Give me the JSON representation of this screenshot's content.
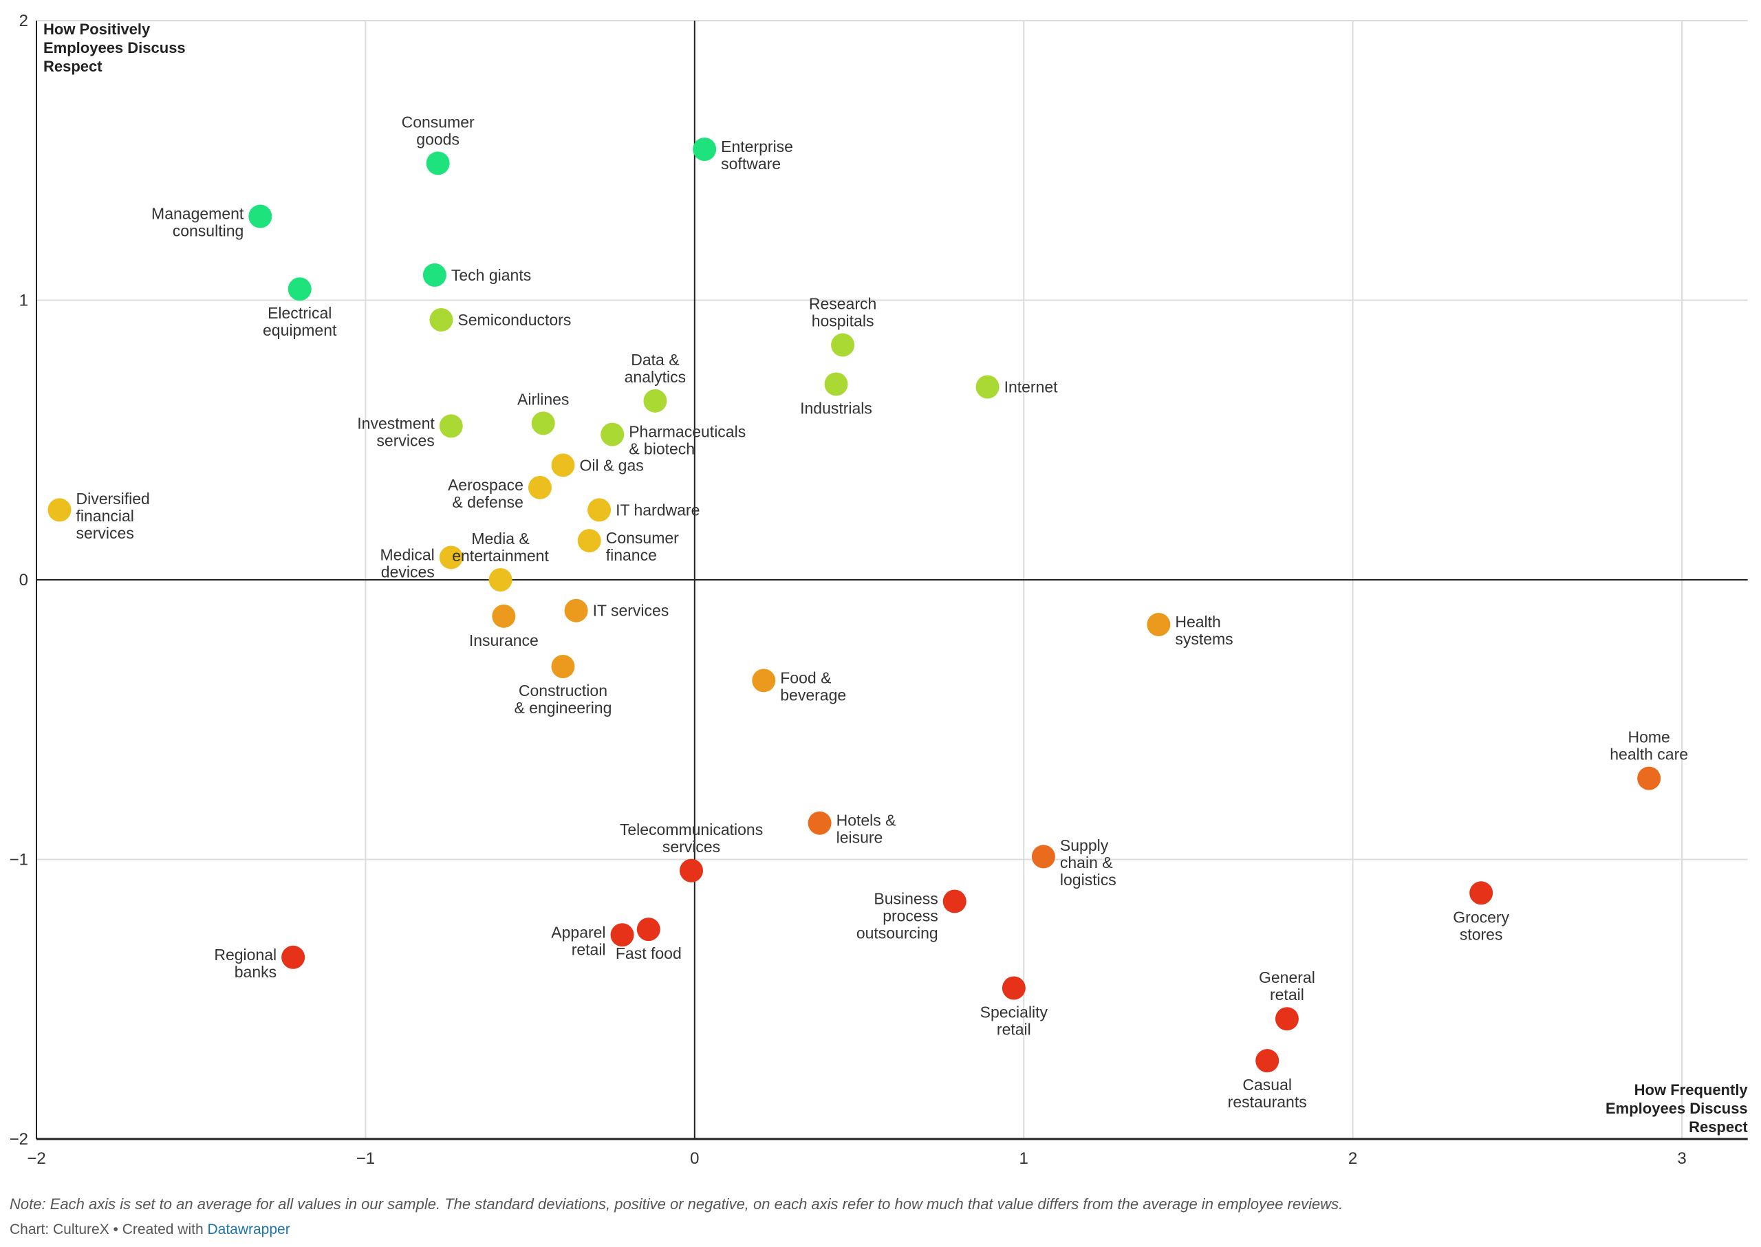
{
  "chart_data": {
    "type": "scatter",
    "title": "",
    "xlabel": "How Frequently Employees Discuss Respect",
    "ylabel": "How Positively Employees Discuss Respect",
    "xlabel_lines": [
      "How Frequently",
      "Employees Discuss",
      "Respect"
    ],
    "ylabel_lines": [
      "How Positively",
      "Employees Discuss",
      "Respect"
    ],
    "xlim": [
      -2,
      3.2
    ],
    "ylim": [
      -2,
      2
    ],
    "x_ticks": [
      -2,
      -1,
      0,
      1,
      2,
      3
    ],
    "y_ticks": [
      -2,
      -1,
      0,
      1,
      2
    ],
    "x_tick_labels": [
      "−2",
      "−1",
      "0",
      "1",
      "2",
      "3"
    ],
    "y_tick_labels": [
      "−2",
      "−1",
      "0",
      "1",
      "2"
    ],
    "grid": true,
    "zero_lines": true,
    "color_scale": {
      "green": "#1ee27c",
      "lime": "#a9d932",
      "yellow": "#ecbf1e",
      "orange": "#ec9a1e",
      "dark_orange": "#ea6a1e",
      "red": "#e53218"
    },
    "points": [
      {
        "name": "Consumer goods",
        "lines": [
          "Consumer",
          "goods"
        ],
        "x": -0.78,
        "y": 1.49,
        "color": "green",
        "label_pos": "top"
      },
      {
        "name": "Enterprise software",
        "lines": [
          "Enterprise",
          "software"
        ],
        "x": 0.03,
        "y": 1.54,
        "color": "green",
        "label_pos": "right"
      },
      {
        "name": "Management consulting",
        "lines": [
          "Management",
          "consulting"
        ],
        "x": -1.32,
        "y": 1.3,
        "color": "green",
        "label_pos": "left"
      },
      {
        "name": "Tech giants",
        "lines": [
          "Tech giants"
        ],
        "x": -0.79,
        "y": 1.09,
        "color": "green",
        "label_pos": "right"
      },
      {
        "name": "Electrical equipment",
        "lines": [
          "Electrical",
          "equipment"
        ],
        "x": -1.2,
        "y": 1.04,
        "color": "green",
        "label_pos": "bottom"
      },
      {
        "name": "Semiconductors",
        "lines": [
          "Semiconductors"
        ],
        "x": -0.77,
        "y": 0.93,
        "color": "lime",
        "label_pos": "right"
      },
      {
        "name": "Research hospitals",
        "lines": [
          "Research",
          "hospitals"
        ],
        "x": 0.45,
        "y": 0.84,
        "color": "lime",
        "label_pos": "top"
      },
      {
        "name": "Industrials",
        "lines": [
          "Industrials"
        ],
        "x": 0.43,
        "y": 0.7,
        "color": "lime",
        "label_pos": "bottom"
      },
      {
        "name": "Internet",
        "lines": [
          "Internet"
        ],
        "x": 0.89,
        "y": 0.69,
        "color": "lime",
        "label_pos": "right"
      },
      {
        "name": "Data & analytics",
        "lines": [
          "Data &",
          "analytics"
        ],
        "x": -0.12,
        "y": 0.64,
        "color": "lime",
        "label_pos": "top"
      },
      {
        "name": "Airlines",
        "lines": [
          "Airlines"
        ],
        "x": -0.46,
        "y": 0.56,
        "color": "lime",
        "label_pos": "top"
      },
      {
        "name": "Investment services",
        "lines": [
          "Investment",
          "services"
        ],
        "x": -0.74,
        "y": 0.55,
        "color": "lime",
        "label_pos": "left"
      },
      {
        "name": "Pharmaceuticals & biotech",
        "lines": [
          "Pharmaceuticals",
          "& biotech"
        ],
        "x": -0.25,
        "y": 0.52,
        "color": "lime",
        "label_pos": "right"
      },
      {
        "name": "Oil & gas",
        "lines": [
          "Oil & gas"
        ],
        "x": -0.4,
        "y": 0.41,
        "color": "yellow",
        "label_pos": "right"
      },
      {
        "name": "Aerospace & defense",
        "lines": [
          "Aerospace",
          "& defense"
        ],
        "x": -0.47,
        "y": 0.33,
        "color": "yellow",
        "label_pos": "left"
      },
      {
        "name": "Diversified financial services",
        "lines": [
          "Diversified",
          "financial",
          "services"
        ],
        "x": -1.93,
        "y": 0.25,
        "color": "yellow",
        "label_pos": "right"
      },
      {
        "name": "IT hardware",
        "lines": [
          "IT hardware"
        ],
        "x": -0.29,
        "y": 0.25,
        "color": "yellow",
        "label_pos": "right"
      },
      {
        "name": "Consumer finance",
        "lines": [
          "Consumer",
          "finance"
        ],
        "x": -0.32,
        "y": 0.14,
        "color": "yellow",
        "label_pos": "right"
      },
      {
        "name": "Medical devices",
        "lines": [
          "Medical",
          "devices"
        ],
        "x": -0.74,
        "y": 0.08,
        "color": "yellow",
        "label_pos": "left"
      },
      {
        "name": "Media & entertainment",
        "lines": [
          "Media &",
          "entertainment"
        ],
        "x": -0.59,
        "y": 0.0,
        "color": "yellow",
        "label_pos": "top"
      },
      {
        "name": "Insurance",
        "lines": [
          "Insurance"
        ],
        "x": -0.58,
        "y": -0.13,
        "color": "orange",
        "label_pos": "bottom"
      },
      {
        "name": "IT services",
        "lines": [
          "IT services"
        ],
        "x": -0.36,
        "y": -0.11,
        "color": "orange",
        "label_pos": "right"
      },
      {
        "name": "Construction & engineering",
        "lines": [
          "Construction",
          "& engineering"
        ],
        "x": -0.4,
        "y": -0.31,
        "color": "orange",
        "label_pos": "bottom"
      },
      {
        "name": "Food & beverage",
        "lines": [
          "Food &",
          "beverage"
        ],
        "x": 0.21,
        "y": -0.36,
        "color": "orange",
        "label_pos": "right"
      },
      {
        "name": "Health systems",
        "lines": [
          "Health",
          "systems"
        ],
        "x": 1.41,
        "y": -0.16,
        "color": "orange",
        "label_pos": "right"
      },
      {
        "name": "Home health care",
        "lines": [
          "Home",
          "health care"
        ],
        "x": 2.9,
        "y": -0.71,
        "color": "dark_orange",
        "label_pos": "top"
      },
      {
        "name": "Hotels & leisure",
        "lines": [
          "Hotels &",
          "leisure"
        ],
        "x": 0.38,
        "y": -0.87,
        "color": "dark_orange",
        "label_pos": "right"
      },
      {
        "name": "Supply chain & logistics",
        "lines": [
          "Supply",
          "chain &",
          "logistics"
        ],
        "x": 1.06,
        "y": -0.99,
        "color": "dark_orange",
        "label_pos": "right"
      },
      {
        "name": "Telecommunications services",
        "lines": [
          "Telecommunications",
          "services"
        ],
        "x": -0.01,
        "y": -1.04,
        "color": "red",
        "label_pos": "top"
      },
      {
        "name": "Business process outsourcing",
        "lines": [
          "Business",
          "process",
          "outsourcing"
        ],
        "x": 0.79,
        "y": -1.15,
        "color": "red",
        "label_pos": "left"
      },
      {
        "name": "Grocery stores",
        "lines": [
          "Grocery",
          "stores"
        ],
        "x": 2.39,
        "y": -1.12,
        "color": "red",
        "label_pos": "bottom"
      },
      {
        "name": "Apparel retail",
        "lines": [
          "Apparel",
          "retail"
        ],
        "x": -0.22,
        "y": -1.27,
        "color": "red",
        "label_pos": "left"
      },
      {
        "name": "Fast food",
        "lines": [
          "Fast food"
        ],
        "x": -0.14,
        "y": -1.25,
        "color": "red",
        "label_pos": "bottom"
      },
      {
        "name": "Regional banks",
        "lines": [
          "Regional",
          "banks"
        ],
        "x": -1.22,
        "y": -1.35,
        "color": "red",
        "label_pos": "left"
      },
      {
        "name": "Speciality retail",
        "lines": [
          "Speciality",
          "retail"
        ],
        "x": 0.97,
        "y": -1.46,
        "color": "red",
        "label_pos": "bottom"
      },
      {
        "name": "General retail",
        "lines": [
          "General",
          "retail"
        ],
        "x": 1.8,
        "y": -1.57,
        "color": "red",
        "label_pos": "top"
      },
      {
        "name": "Casual restaurants",
        "lines": [
          "Casual",
          "restaurants"
        ],
        "x": 1.74,
        "y": -1.72,
        "color": "red",
        "label_pos": "bottom"
      }
    ]
  },
  "footer": {
    "note": "Note: Each axis is set to an average for all values in our sample. The standard deviations, positive or negative, on each axis refer to how much that value differs from the average in employee reviews.",
    "credit_prefix": "Chart: CultureX • Created with ",
    "credit_link": "Datawrapper"
  }
}
